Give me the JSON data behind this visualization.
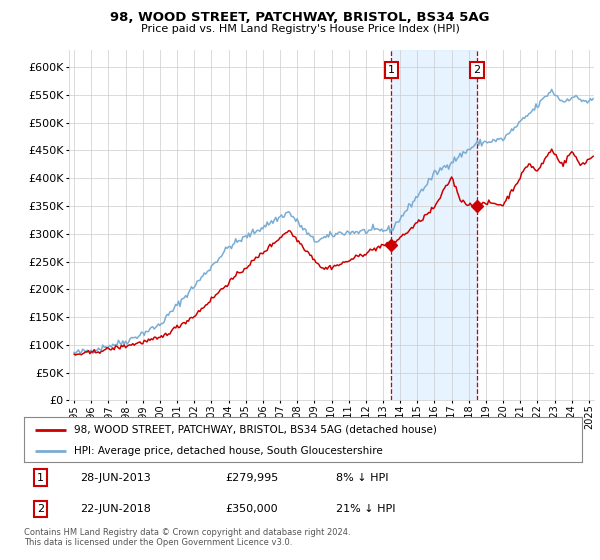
{
  "title": "98, WOOD STREET, PATCHWAY, BRISTOL, BS34 5AG",
  "subtitle": "Price paid vs. HM Land Registry's House Price Index (HPI)",
  "yticks": [
    0,
    50000,
    100000,
    150000,
    200000,
    250000,
    300000,
    350000,
    400000,
    450000,
    500000,
    550000,
    600000
  ],
  "xlim_start": 1994.7,
  "xlim_end": 2025.3,
  "ylim": [
    0,
    630000
  ],
  "transaction1": {
    "date_label": "28-JUN-2013",
    "date_x": 2013.49,
    "price": 279995,
    "pct": "8% ↓ HPI"
  },
  "transaction2": {
    "date_label": "22-JUN-2018",
    "date_x": 2018.49,
    "price": 350000,
    "pct": "21% ↓ HPI"
  },
  "legend_line1": "98, WOOD STREET, PATCHWAY, BRISTOL, BS34 5AG (detached house)",
  "legend_line2": "HPI: Average price, detached house, South Gloucestershire",
  "footnote": "Contains HM Land Registry data © Crown copyright and database right 2024.\nThis data is licensed under the Open Government Licence v3.0.",
  "hpi_color": "#7aadd4",
  "price_color": "#cc0000",
  "marker_color": "#cc0000",
  "shade_color": "#ddeeff",
  "vline_color": "#cc0000",
  "grid_color": "#cccccc",
  "background_color": "#ffffff"
}
